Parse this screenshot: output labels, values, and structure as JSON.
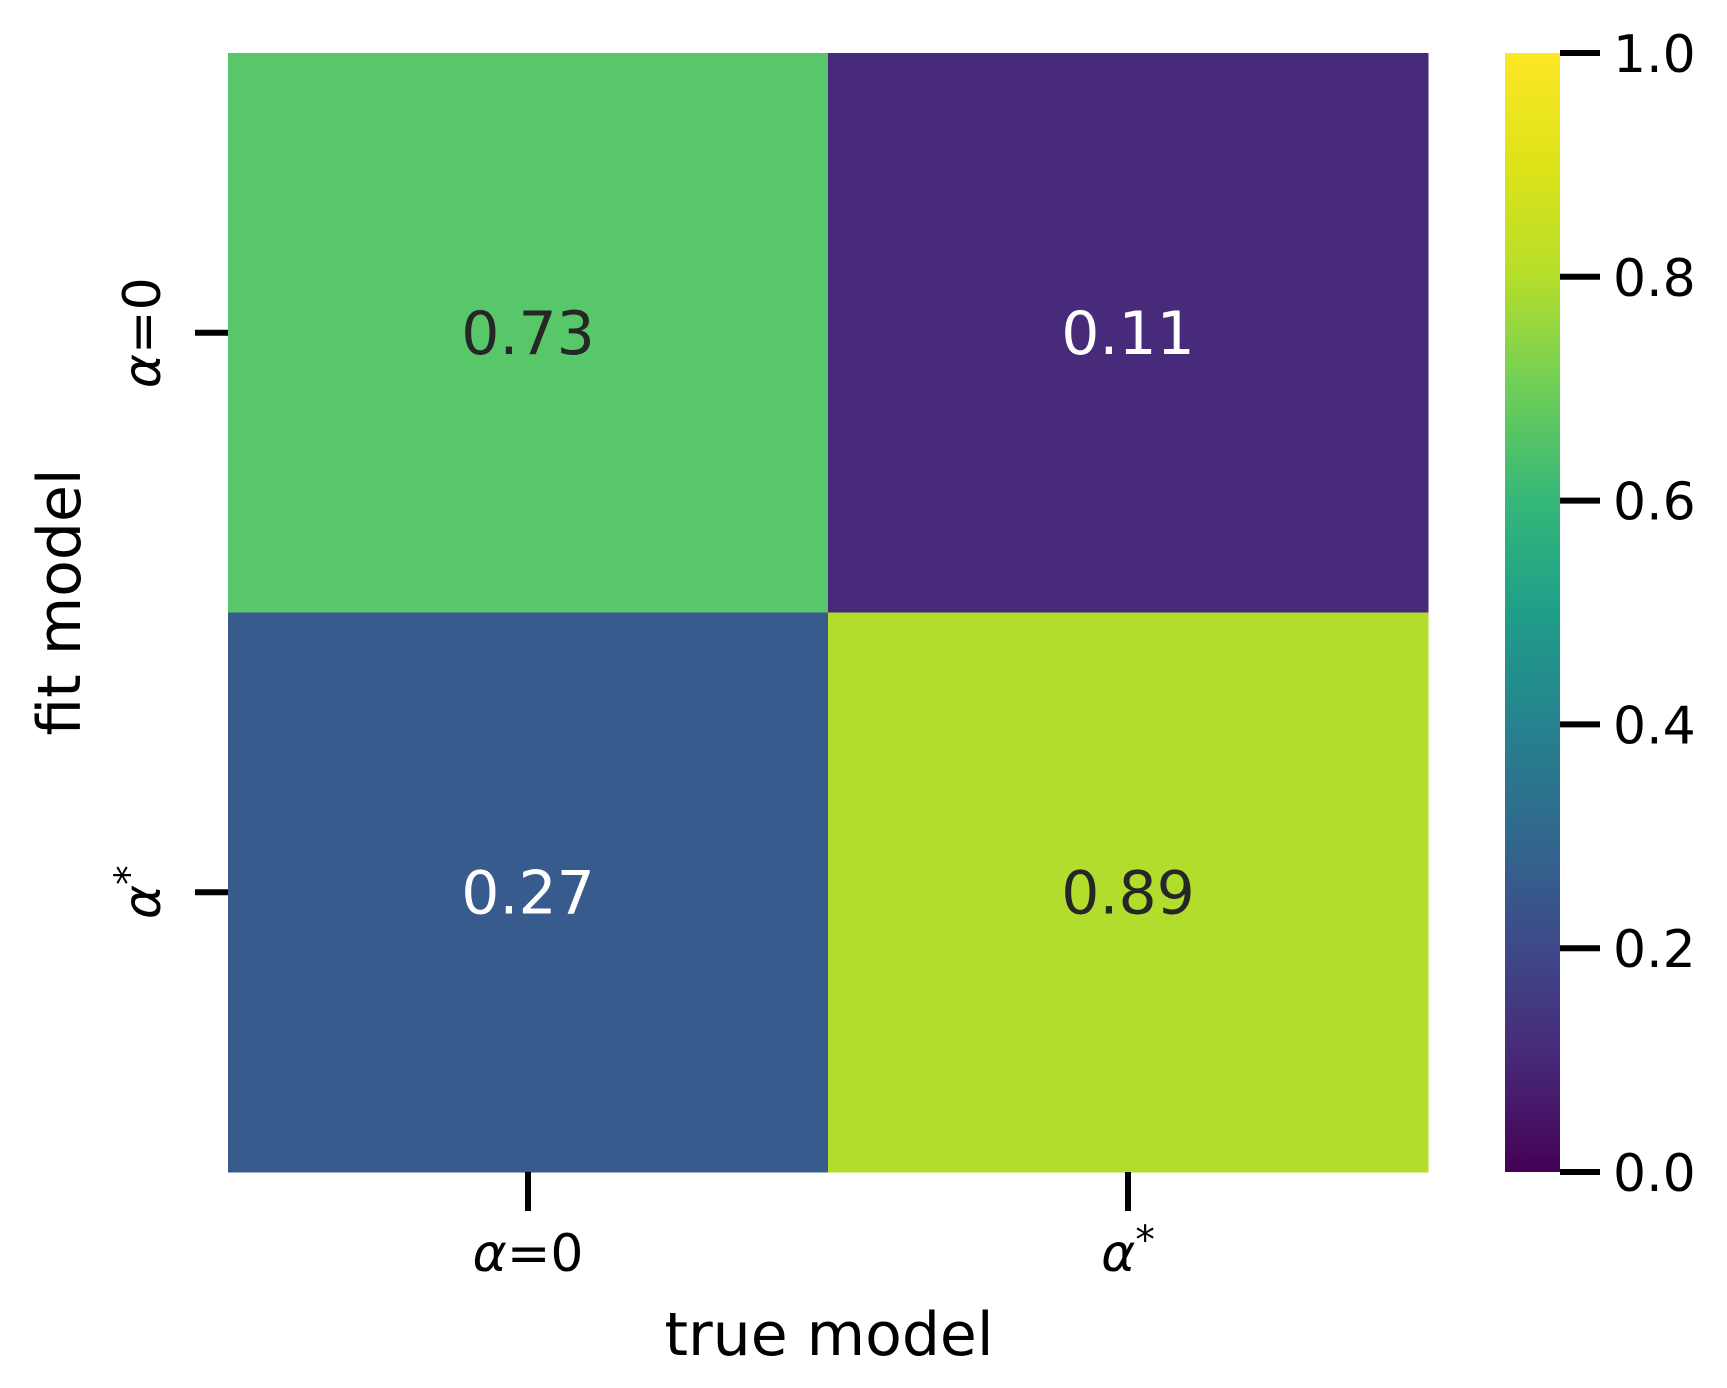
{
  "chart_data": {
    "type": "heatmap",
    "xlabel": "true model",
    "ylabel": "fit model",
    "x_categories": [
      "α=0",
      "α*"
    ],
    "y_categories": [
      "α=0",
      "α*"
    ],
    "values": [
      [
        0.73,
        0.11
      ],
      [
        0.27,
        0.89
      ]
    ],
    "value_labels": [
      [
        "0.73",
        "0.11"
      ],
      [
        "0.27",
        "0.89"
      ]
    ],
    "colormap": "viridis",
    "colorbar": {
      "min": 0.0,
      "max": 1.0,
      "ticks": [
        0.0,
        0.2,
        0.4,
        0.6,
        0.8,
        1.0
      ],
      "tick_labels": [
        "0.0",
        "0.2",
        "0.4",
        "0.6",
        "0.8",
        "1.0"
      ]
    },
    "cell_colors": [
      [
        "#58c76a",
        "#472a7a"
      ],
      [
        "#375b8d",
        "#b3dd2d"
      ]
    ],
    "text_colors": [
      [
        "#262626",
        "#ffffff"
      ],
      [
        "#ffffff",
        "#262626"
      ]
    ]
  }
}
